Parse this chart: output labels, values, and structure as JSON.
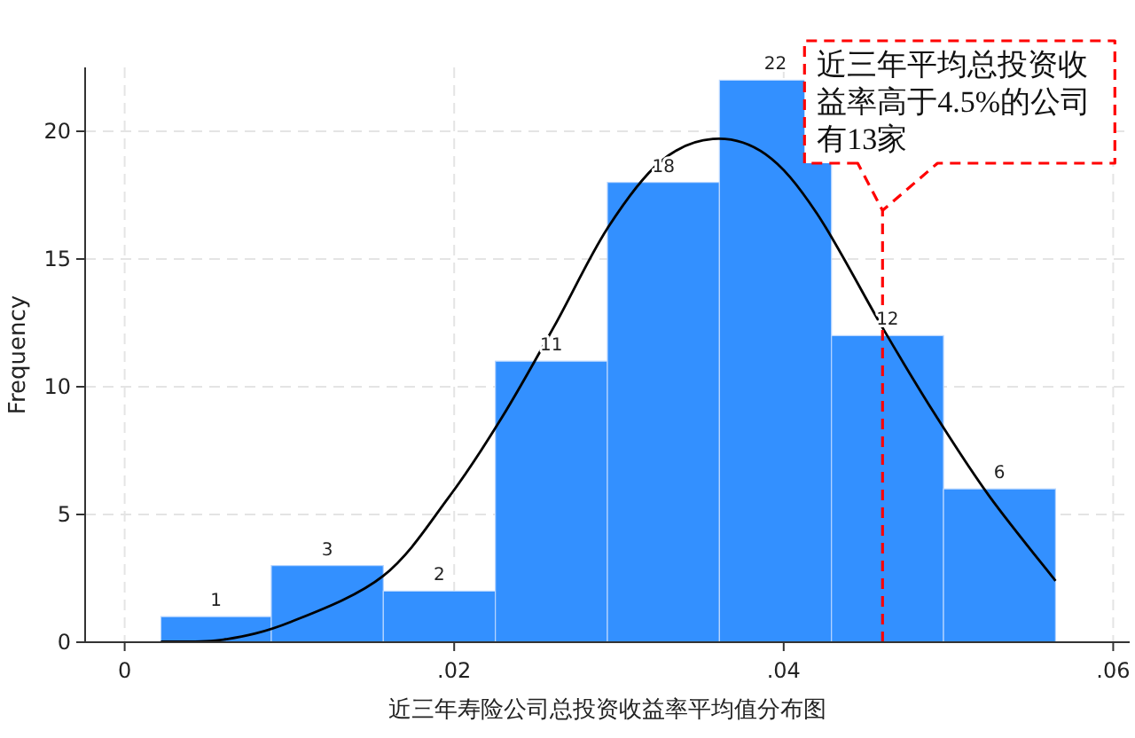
{
  "chart_data": {
    "type": "histogram",
    "xlabel": "近三年寿险公司总投资收益率平均值分布图",
    "ylabel": "Frequency",
    "bins": [
      0.0022,
      0.0089,
      0.0157,
      0.0225,
      0.0293,
      0.0361,
      0.0429,
      0.0497,
      0.0565
    ],
    "values": [
      1,
      3,
      2,
      11,
      18,
      22,
      12,
      6
    ],
    "color": "#3390ff",
    "value_labels": [
      "1",
      "3",
      "2",
      "11",
      "18",
      "22",
      "12",
      "6"
    ],
    "series": [
      {
        "type": "line",
        "color": "#000000",
        "x": [
          0.0022,
          0.006,
          0.0101,
          0.0157,
          0.0197,
          0.0229,
          0.0261,
          0.0293,
          0.0325,
          0.0357,
          0.0389,
          0.042,
          0.0461,
          0.0493,
          0.0525,
          0.0565
        ],
        "values": [
          0.02,
          0.1,
          0.8,
          2.6,
          5.7,
          8.8,
          12.4,
          16.2,
          18.8,
          19.7,
          19.1,
          16.8,
          12.2,
          8.8,
          5.7,
          2.4
        ]
      }
    ],
    "xlim": [
      -0.0024,
      0.061
    ],
    "ylim": [
      0,
      22.5
    ],
    "xticks": [
      {
        "value": 0,
        "label": "0"
      },
      {
        "value": 0.02,
        "label": ".02"
      },
      {
        "value": 0.04,
        "label": ".04"
      },
      {
        "value": 0.06,
        "label": ".06"
      }
    ],
    "yticks": [
      0,
      5,
      10,
      15,
      20
    ],
    "grid": true,
    "ref_lines": [
      {
        "axis": "x",
        "value": 0.046,
        "color": "#ff0000",
        "line_style": "dashed"
      }
    ],
    "annotations": [
      {
        "text": "近三年平均总投资收益率高于4.5%的公司有13家",
        "x": 0.046,
        "y": 16.9
      }
    ]
  }
}
